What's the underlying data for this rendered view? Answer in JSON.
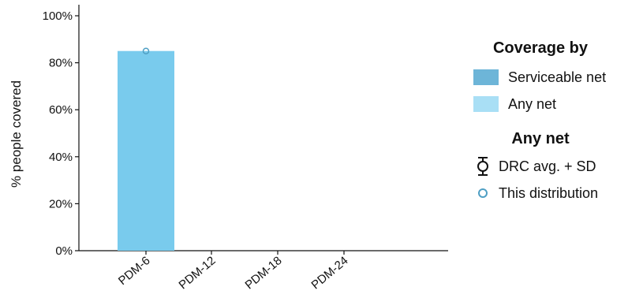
{
  "chart_data": {
    "type": "bar",
    "categories": [
      "PDM-6",
      "PDM-12",
      "PDM-18",
      "PDM-24"
    ],
    "series": [
      {
        "name": "Any net",
        "values": [
          85,
          null,
          null,
          null
        ],
        "color": "#79CBED"
      }
    ],
    "this_distribution": [
      85,
      null,
      null,
      null
    ],
    "ylabel": "% people covered",
    "ylim": [
      0,
      100
    ],
    "yticks": [
      "0%",
      "20%",
      "40%",
      "60%",
      "80%",
      "100%"
    ],
    "grid": false
  },
  "legend": {
    "title": "Coverage by",
    "items": [
      {
        "label": "Serviceable net",
        "color": "#6DB5D8"
      },
      {
        "label": "Any net",
        "color": "#A9DFF5"
      }
    ],
    "sub_title": "Any net",
    "symbols": [
      {
        "label": "DRC avg. + SD",
        "icon": "error-bar-circle-icon"
      },
      {
        "label": "This distribution",
        "icon": "hollow-circle-icon"
      }
    ]
  },
  "colors": {
    "bar": "#79CBED",
    "marker": "#4F9FC4",
    "axis": "#111111"
  }
}
